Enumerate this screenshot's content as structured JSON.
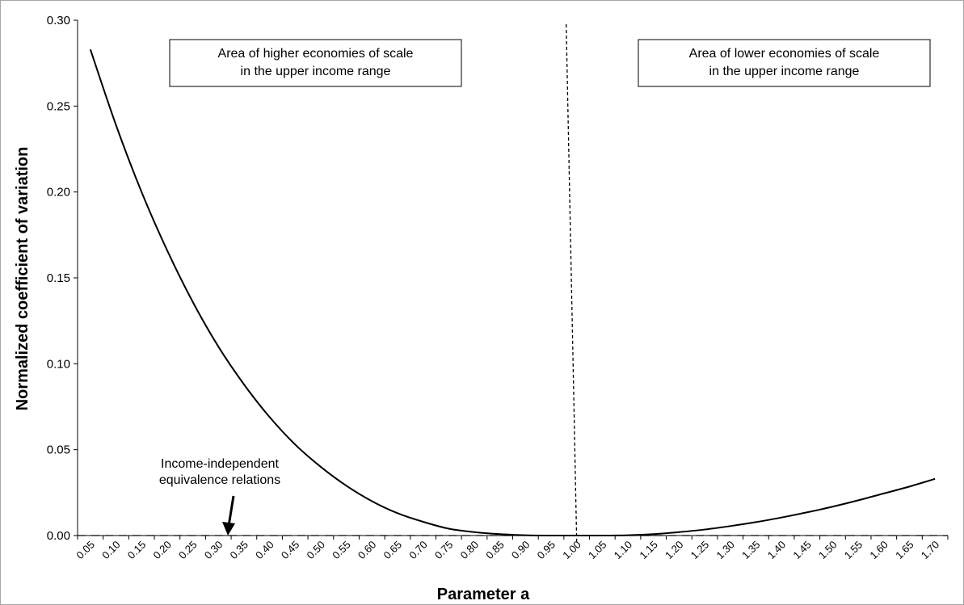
{
  "chart_data": {
    "type": "line",
    "title": "",
    "xlabel": "Parameter a",
    "ylabel": "Normalized coefficient of variation",
    "ylim": [
      0,
      0.3
    ],
    "yticks": [
      "0.00",
      "0.05",
      "0.10",
      "0.15",
      "0.20",
      "0.25",
      "0.30"
    ],
    "categories": [
      "0.05",
      "0.10",
      "0.15",
      "0.20",
      "0.25",
      "0.30",
      "0.35",
      "0.40",
      "0.45",
      "0.50",
      "0.55",
      "0.60",
      "0.65",
      "0.70",
      "0.75",
      "0.80",
      "0.85",
      "0.90",
      "0.95",
      "1.00",
      "1.05",
      "1.10",
      "1.15",
      "1.20",
      "1.25",
      "1.30",
      "1.35",
      "1.40",
      "1.45",
      "1.50",
      "1.55",
      "1.60",
      "1.65",
      "1.70"
    ],
    "series": [
      {
        "values": [
          0.283,
          0.239,
          0.2,
          0.166,
          0.136,
          0.11,
          0.088,
          0.069,
          0.053,
          0.04,
          0.029,
          0.02,
          0.013,
          0.008,
          0.004,
          0.002,
          0.0008,
          0.0002,
          0.0,
          0.0,
          0.0,
          0.0002,
          0.0008,
          0.002,
          0.0035,
          0.0055,
          0.0078,
          0.0105,
          0.0135,
          0.0168,
          0.0205,
          0.0245,
          0.0285,
          0.033
        ],
        "color": "#000000",
        "style": "solid"
      }
    ],
    "reference_lines": [
      {
        "orientation": "horizontal",
        "value": 0.0,
        "style": "dashed"
      },
      {
        "orientation": "vertical",
        "value": "1.00",
        "style": "dashed"
      }
    ],
    "annotations": [
      {
        "lines": [
          "Area of higher economies of scale",
          "in the upper income range"
        ],
        "boxed": true
      },
      {
        "lines": [
          "Area of lower economies of scale",
          "in the upper income range"
        ],
        "boxed": true
      },
      {
        "lines": [
          "Income-independent",
          "equivalence relations"
        ],
        "boxed": false,
        "arrow": true
      }
    ],
    "grid": false,
    "legend": "none"
  }
}
